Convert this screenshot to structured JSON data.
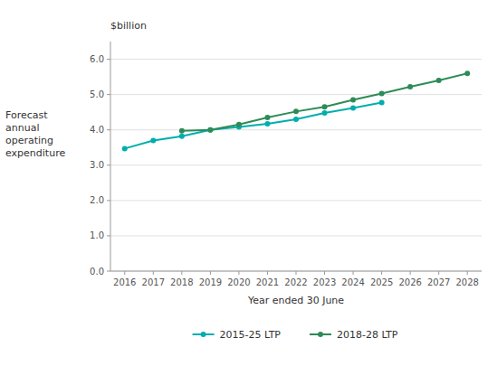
{
  "chart_data": {
    "type": "line",
    "x_label": "Year ended 30 June",
    "y_label": "Forecast\nannual\noperating\nexpenditure",
    "annotations": [
      "$billion"
    ],
    "x": [
      2016,
      2017,
      2018,
      2019,
      2020,
      2021,
      2022,
      2023,
      2024,
      2025,
      2026,
      2027,
      2028
    ],
    "series": [
      {
        "name": "2015-25 LTP",
        "color": "#00AEAE",
        "marker": "circle",
        "line_style": "solid",
        "values": [
          3.47,
          3.7,
          3.82,
          4.0,
          4.08,
          4.17,
          4.3,
          4.48,
          4.62,
          4.77,
          null,
          null,
          null
        ]
      },
      {
        "name": "2018-28 LTP",
        "color": "#2E8B57",
        "marker": "circle",
        "line_style": "solid",
        "values": [
          null,
          null,
          3.97,
          4.0,
          4.15,
          4.35,
          4.52,
          4.65,
          4.85,
          5.03,
          5.22,
          5.4,
          5.6
        ]
      }
    ],
    "xlim": [
      2015.5,
      2028.5
    ],
    "xticks": [
      2016,
      2017,
      2018,
      2019,
      2020,
      2021,
      2022,
      2023,
      2024,
      2025,
      2026,
      2027,
      2028
    ],
    "ylim": [
      0.0,
      6.5
    ],
    "yticks": [
      {
        "value": 0.0,
        "label": "0.0"
      },
      {
        "value": 1.0,
        "label": "1.0"
      },
      {
        "value": 2.0,
        "label": "2.0"
      },
      {
        "value": 3.0,
        "label": "3.0"
      },
      {
        "value": 4.0,
        "label": "4.0"
      },
      {
        "value": 5.0,
        "label": "5.0"
      },
      {
        "value": 6.0,
        "label": "6.0"
      }
    ],
    "grid": true,
    "legend": "bottom"
  }
}
